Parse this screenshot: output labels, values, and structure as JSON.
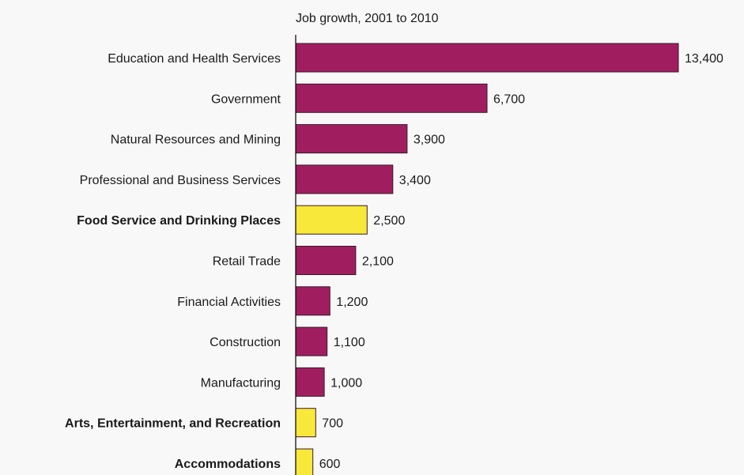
{
  "chart_data": {
    "type": "bar",
    "orientation": "horizontal",
    "title": "Job growth, 2001 to 2010",
    "categories": [
      "Education and Health Services",
      "Government",
      "Natural Resources and Mining",
      "Professional and Business Services",
      "Food Service and Drinking Places",
      "Retail Trade",
      "Financial Activities",
      "Construction",
      "Manufacturing",
      "Arts, Entertainment, and Recreation",
      "Accommodations"
    ],
    "values": [
      13400,
      6700,
      3900,
      3400,
      2500,
      2100,
      1200,
      1100,
      1000,
      700,
      600
    ],
    "value_labels": [
      "13,400",
      "6,700",
      "3,900",
      "3,400",
      "2,500",
      "2,100",
      "1,200",
      "1,100",
      "1,000",
      "700",
      "600"
    ],
    "highlighted": [
      false,
      false,
      false,
      false,
      true,
      false,
      false,
      false,
      false,
      true,
      true
    ],
    "colors": {
      "default": "#a01e60",
      "highlight": "#f8e83a",
      "outline": "#3a1a2a",
      "axis": "#000000"
    },
    "xlim": [
      0,
      13400
    ],
    "grid": false,
    "legend": "none"
  }
}
